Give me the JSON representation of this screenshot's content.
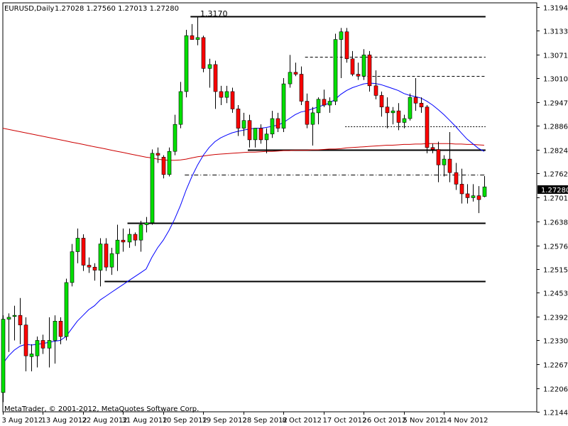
{
  "header": {
    "symbol_timeframe": "EURUSD,Daily",
    "ohlc": "1.27028 1.27560 1.27013 1.27280"
  },
  "footer": {
    "copyright": "MetaTrader, © 2001-2012, MetaQuotes Software Corp."
  },
  "annotations": {
    "peak_label": "1.3170"
  },
  "colors": {
    "background": "#ffffff",
    "bull": "#00e000",
    "bear": "#ff0000",
    "wick": "#000000",
    "ma_fast": "#0000ff",
    "ma_slow": "#cc0000",
    "level_line": "#000000",
    "price_label_bg": "#000000",
    "price_label_text": "#ffffff"
  },
  "chart_data": {
    "type": "candlestick",
    "title": "EURUSD,Daily",
    "ylim": [
      1.2145,
      1.3205
    ],
    "yticks": [
      "1.31945",
      "1.31330",
      "1.30715",
      "1.30100",
      "1.29475",
      "1.28865",
      "1.28240",
      "1.27625",
      "1.27010",
      "1.26380",
      "1.25765",
      "1.25150",
      "1.24535",
      "1.23920",
      "1.23300",
      "1.22675",
      "1.22060",
      "1.21445"
    ],
    "xticks": [
      "3 Aug 2012",
      "13 Aug 2012",
      "22 Aug 2012",
      "31 Aug 2012",
      "10 Sep 2012",
      "19 Sep 2012",
      "28 Sep 2012",
      "8 Oct 2012",
      "17 Oct 2012",
      "26 Oct 2012",
      "5 Nov 2012",
      "14 Nov 2012"
    ],
    "current_price": "1.27280",
    "candles": [
      {
        "o": 1.2195,
        "h": 1.2395,
        "l": 1.217,
        "c": 1.2385
      },
      {
        "o": 1.2385,
        "h": 1.24,
        "l": 1.23,
        "c": 1.239
      },
      {
        "o": 1.2392,
        "h": 1.242,
        "l": 1.233,
        "c": 1.2395
      },
      {
        "o": 1.2395,
        "h": 1.244,
        "l": 1.232,
        "c": 1.237
      },
      {
        "o": 1.237,
        "h": 1.239,
        "l": 1.225,
        "c": 1.229
      },
      {
        "o": 1.2288,
        "h": 1.232,
        "l": 1.225,
        "c": 1.2295
      },
      {
        "o": 1.229,
        "h": 1.234,
        "l": 1.226,
        "c": 1.233
      },
      {
        "o": 1.233,
        "h": 1.2345,
        "l": 1.2295,
        "c": 1.231
      },
      {
        "o": 1.231,
        "h": 1.239,
        "l": 1.226,
        "c": 1.233
      },
      {
        "o": 1.233,
        "h": 1.2395,
        "l": 1.227,
        "c": 1.238
      },
      {
        "o": 1.238,
        "h": 1.239,
        "l": 1.232,
        "c": 1.234
      },
      {
        "o": 1.234,
        "h": 1.249,
        "l": 1.233,
        "c": 1.248
      },
      {
        "o": 1.248,
        "h": 1.258,
        "l": 1.247,
        "c": 1.256
      },
      {
        "o": 1.256,
        "h": 1.262,
        "l": 1.253,
        "c": 1.2595
      },
      {
        "o": 1.2595,
        "h": 1.2605,
        "l": 1.251,
        "c": 1.2525
      },
      {
        "o": 1.2525,
        "h": 1.2545,
        "l": 1.2505,
        "c": 1.252
      },
      {
        "o": 1.252,
        "h": 1.253,
        "l": 1.2485,
        "c": 1.2512
      },
      {
        "o": 1.2512,
        "h": 1.2595,
        "l": 1.247,
        "c": 1.258
      },
      {
        "o": 1.258,
        "h": 1.2595,
        "l": 1.251,
        "c": 1.252
      },
      {
        "o": 1.252,
        "h": 1.257,
        "l": 1.25,
        "c": 1.2555
      },
      {
        "o": 1.2555,
        "h": 1.263,
        "l": 1.251,
        "c": 1.259
      },
      {
        "o": 1.259,
        "h": 1.262,
        "l": 1.256,
        "c": 1.2585
      },
      {
        "o": 1.2585,
        "h": 1.262,
        "l": 1.257,
        "c": 1.2605
      },
      {
        "o": 1.2605,
        "h": 1.261,
        "l": 1.2575,
        "c": 1.259
      },
      {
        "o": 1.259,
        "h": 1.264,
        "l": 1.256,
        "c": 1.263
      },
      {
        "o": 1.263,
        "h": 1.265,
        "l": 1.261,
        "c": 1.2635
      },
      {
        "o": 1.2635,
        "h": 1.2825,
        "l": 1.263,
        "c": 1.2815
      },
      {
        "o": 1.2815,
        "h": 1.283,
        "l": 1.279,
        "c": 1.281
      },
      {
        "o": 1.2805,
        "h": 1.281,
        "l": 1.275,
        "c": 1.276
      },
      {
        "o": 1.276,
        "h": 1.283,
        "l": 1.2755,
        "c": 1.282
      },
      {
        "o": 1.282,
        "h": 1.2915,
        "l": 1.281,
        "c": 1.289
      },
      {
        "o": 1.289,
        "h": 1.3,
        "l": 1.288,
        "c": 1.2975
      },
      {
        "o": 1.2975,
        "h": 1.3135,
        "l": 1.296,
        "c": 1.312
      },
      {
        "o": 1.312,
        "h": 1.315,
        "l": 1.311,
        "c": 1.311
      },
      {
        "o": 1.311,
        "h": 1.317,
        "l": 1.3095,
        "c": 1.3115
      },
      {
        "o": 1.3115,
        "h": 1.312,
        "l": 1.3025,
        "c": 1.3035
      },
      {
        "o": 1.3035,
        "h": 1.306,
        "l": 1.2985,
        "c": 1.3045
      },
      {
        "o": 1.3045,
        "h": 1.3055,
        "l": 1.293,
        "c": 1.2975
      },
      {
        "o": 1.2975,
        "h": 1.299,
        "l": 1.294,
        "c": 1.296
      },
      {
        "o": 1.296,
        "h": 1.299,
        "l": 1.2945,
        "c": 1.2975
      },
      {
        "o": 1.2975,
        "h": 1.2985,
        "l": 1.292,
        "c": 1.293
      },
      {
        "o": 1.293,
        "h": 1.294,
        "l": 1.286,
        "c": 1.288
      },
      {
        "o": 1.288,
        "h": 1.292,
        "l": 1.286,
        "c": 1.29
      },
      {
        "o": 1.29,
        "h": 1.2915,
        "l": 1.283,
        "c": 1.285
      },
      {
        "o": 1.285,
        "h": 1.288,
        "l": 1.283,
        "c": 1.288
      },
      {
        "o": 1.288,
        "h": 1.289,
        "l": 1.284,
        "c": 1.285
      },
      {
        "o": 1.285,
        "h": 1.288,
        "l": 1.2815,
        "c": 1.2865
      },
      {
        "o": 1.2865,
        "h": 1.2925,
        "l": 1.2855,
        "c": 1.2905
      },
      {
        "o": 1.2905,
        "h": 1.292,
        "l": 1.287,
        "c": 1.288
      },
      {
        "o": 1.288,
        "h": 1.301,
        "l": 1.287,
        "c": 1.2995
      },
      {
        "o": 1.2995,
        "h": 1.307,
        "l": 1.2985,
        "c": 1.3025
      },
      {
        "o": 1.3025,
        "h": 1.305,
        "l": 1.3015,
        "c": 1.302
      },
      {
        "o": 1.302,
        "h": 1.304,
        "l": 1.294,
        "c": 1.295
      },
      {
        "o": 1.295,
        "h": 1.297,
        "l": 1.288,
        "c": 1.289
      },
      {
        "o": 1.289,
        "h": 1.2935,
        "l": 1.2835,
        "c": 1.292
      },
      {
        "o": 1.292,
        "h": 1.296,
        "l": 1.289,
        "c": 1.2955
      },
      {
        "o": 1.2955,
        "h": 1.298,
        "l": 1.2935,
        "c": 1.294
      },
      {
        "o": 1.294,
        "h": 1.296,
        "l": 1.292,
        "c": 1.295
      },
      {
        "o": 1.295,
        "h": 1.3125,
        "l": 1.294,
        "c": 1.311
      },
      {
        "o": 1.311,
        "h": 1.314,
        "l": 1.301,
        "c": 1.313
      },
      {
        "o": 1.313,
        "h": 1.314,
        "l": 1.305,
        "c": 1.306
      },
      {
        "o": 1.306,
        "h": 1.308,
        "l": 1.3015,
        "c": 1.302
      },
      {
        "o": 1.302,
        "h": 1.305,
        "l": 1.3005,
        "c": 1.3015
      },
      {
        "o": 1.3015,
        "h": 1.3085,
        "l": 1.3005,
        "c": 1.307
      },
      {
        "o": 1.307,
        "h": 1.308,
        "l": 1.2975,
        "c": 1.299
      },
      {
        "o": 1.299,
        "h": 1.303,
        "l": 1.2955,
        "c": 1.2965
      },
      {
        "o": 1.2965,
        "h": 1.2975,
        "l": 1.291,
        "c": 1.2935
      },
      {
        "o": 1.2935,
        "h": 1.296,
        "l": 1.288,
        "c": 1.292
      },
      {
        "o": 1.292,
        "h": 1.2935,
        "l": 1.289,
        "c": 1.2925
      },
      {
        "o": 1.2925,
        "h": 1.2945,
        "l": 1.2875,
        "c": 1.2895
      },
      {
        "o": 1.2895,
        "h": 1.2915,
        "l": 1.288,
        "c": 1.2905
      },
      {
        "o": 1.2905,
        "h": 1.297,
        "l": 1.29,
        "c": 1.296
      },
      {
        "o": 1.296,
        "h": 1.301,
        "l": 1.2925,
        "c": 1.2945
      },
      {
        "o": 1.2945,
        "h": 1.296,
        "l": 1.292,
        "c": 1.2935
      },
      {
        "o": 1.2935,
        "h": 1.294,
        "l": 1.2815,
        "c": 1.283
      },
      {
        "o": 1.283,
        "h": 1.284,
        "l": 1.2815,
        "c": 1.2825
      },
      {
        "o": 1.2825,
        "h": 1.2845,
        "l": 1.274,
        "c": 1.2785
      },
      {
        "o": 1.2785,
        "h": 1.281,
        "l": 1.2755,
        "c": 1.28
      },
      {
        "o": 1.28,
        "h": 1.287,
        "l": 1.274,
        "c": 1.2765
      },
      {
        "o": 1.2765,
        "h": 1.279,
        "l": 1.272,
        "c": 1.2735
      },
      {
        "o": 1.2735,
        "h": 1.2775,
        "l": 1.2685,
        "c": 1.271
      },
      {
        "o": 1.271,
        "h": 1.2735,
        "l": 1.2685,
        "c": 1.27
      },
      {
        "o": 1.27,
        "h": 1.2735,
        "l": 1.269,
        "c": 1.2705
      },
      {
        "o": 1.2705,
        "h": 1.273,
        "l": 1.266,
        "c": 1.2695
      },
      {
        "o": 1.2703,
        "h": 1.2756,
        "l": 1.2701,
        "c": 1.2728
      }
    ],
    "ma_fast": [
      1.227,
      1.229,
      1.2305,
      1.2315,
      1.232,
      1.2318,
      1.232,
      1.2322,
      1.2325,
      1.2328,
      1.233,
      1.234,
      1.236,
      1.238,
      1.2395,
      1.241,
      1.242,
      1.2435,
      1.2445,
      1.2455,
      1.2465,
      1.2475,
      1.2485,
      1.2495,
      1.2505,
      1.2515,
      1.2545,
      1.257,
      1.259,
      1.2615,
      1.2645,
      1.268,
      1.272,
      1.2755,
      1.2785,
      1.281,
      1.283,
      1.2845,
      1.2855,
      1.2862,
      1.2868,
      1.2872,
      1.2875,
      1.2878,
      1.288,
      1.288,
      1.2882,
      1.2885,
      1.2888,
      1.2895,
      1.2905,
      1.2915,
      1.2922,
      1.2925,
      1.293,
      1.2935,
      1.294,
      1.2945,
      1.2955,
      1.2968,
      1.2978,
      1.2985,
      1.299,
      1.2995,
      1.2997,
      1.2996,
      1.2993,
      1.2988,
      1.2983,
      1.2978,
      1.297,
      1.2965,
      1.2962,
      1.2958,
      1.295,
      1.294,
      1.2928,
      1.2915,
      1.29,
      1.2885,
      1.2868,
      1.2852,
      1.284,
      1.2828,
      1.282
    ],
    "ma_slow": [
      1.288,
      1.2877,
      1.2874,
      1.2871,
      1.2868,
      1.2865,
      1.2862,
      1.2859,
      1.2856,
      1.2853,
      1.285,
      1.2847,
      1.2844,
      1.2841,
      1.2838,
      1.2835,
      1.2832,
      1.2829,
      1.2826,
      1.2823,
      1.282,
      1.2817,
      1.2814,
      1.2811,
      1.2808,
      1.2805,
      1.2803,
      1.28,
      1.2798,
      1.2797,
      1.2797,
      1.2798,
      1.28,
      1.2803,
      1.2806,
      1.2808,
      1.281,
      1.2812,
      1.2813,
      1.2814,
      1.2815,
      1.2816,
      1.2817,
      1.2818,
      1.2818,
      1.2819,
      1.282,
      1.282,
      1.2821,
      1.2822,
      1.2822,
      1.2823,
      1.2823,
      1.2823,
      1.2824,
      1.2824,
      1.2825,
      1.2826,
      1.2826,
      1.2827,
      1.2829,
      1.283,
      1.2831,
      1.2832,
      1.2833,
      1.2834,
      1.2835,
      1.2836,
      1.2836,
      1.2837,
      1.2838,
      1.2838,
      1.2839,
      1.2839,
      1.284,
      1.284,
      1.284,
      1.284,
      1.284,
      1.2839,
      1.2839,
      1.2838,
      1.2838,
      1.2837,
      1.2836
    ],
    "levels": [
      {
        "price": 1.317,
        "style": "solid",
        "from": 33,
        "to": 84
      },
      {
        "price": 1.3065,
        "style": "dashed",
        "from": 53,
        "to": 84
      },
      {
        "price": 1.3015,
        "style": "dashed",
        "from": 63,
        "to": 84
      },
      {
        "price": 1.2885,
        "style": "dotted",
        "from": 60,
        "to": 84
      },
      {
        "price": 1.2824,
        "style": "solid",
        "from": 43,
        "to": 84
      },
      {
        "price": 1.276,
        "style": "dashdot",
        "from": 32,
        "to": 84
      },
      {
        "price": 1.2635,
        "style": "solid",
        "from": 22,
        "to": 84
      },
      {
        "price": 1.2483,
        "style": "solid",
        "from": 18,
        "to": 84
      }
    ]
  }
}
